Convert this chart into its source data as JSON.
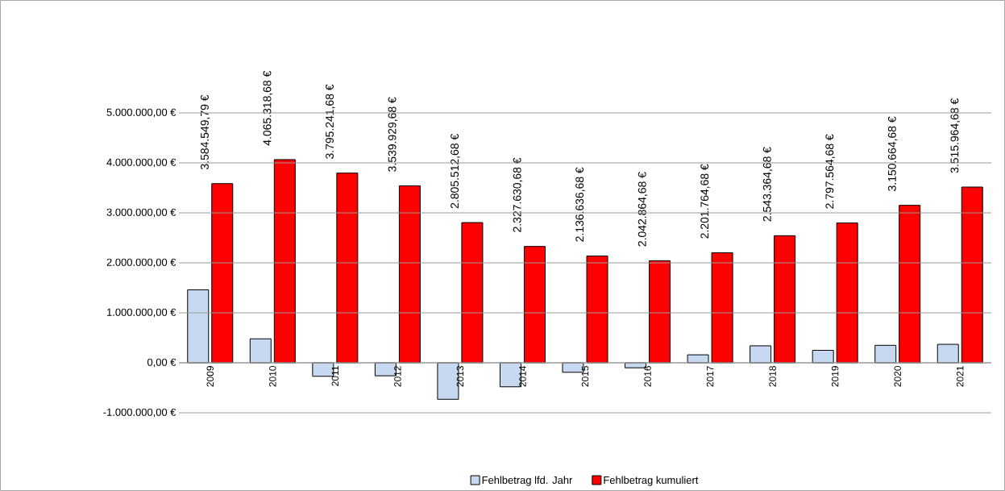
{
  "chart_data": {
    "type": "bar",
    "categories": [
      "2009",
      "2010",
      "2011",
      "2012",
      "2013",
      "2014",
      "2015",
      "2016",
      "2017",
      "2018",
      "2019",
      "2020",
      "2021"
    ],
    "series": [
      {
        "name": "Fehlbetrag lfd. Jahr",
        "color": "#c6d9f1",
        "values": [
          1460000,
          480000,
          -270000,
          -260000,
          -730000,
          -480000,
          -190000,
          -100000,
          160000,
          340000,
          250000,
          350000,
          370000
        ]
      },
      {
        "name": "Fehlbetrag kumuliert",
        "color": "#ff0000",
        "values": [
          3584549.79,
          4065318.68,
          3795241.68,
          3539929.68,
          2805512.68,
          2327630.68,
          2136636.68,
          2042864.68,
          2201764.68,
          2543364.68,
          2797564.68,
          3150664.68,
          3515964.68
        ],
        "value_labels": [
          "3.584.549,79 €",
          "4.065.318,68 €",
          "3.795.241,68 €",
          "3.539.929,68 €",
          "2.805.512,68 €",
          "2.327.630,68 €",
          "2.136.636,68 €",
          "2.042.864,68 €",
          "2.201.764,68 €",
          "2.543.364,68 €",
          "2.797.564,68 €",
          "3.150.664,68 €",
          "3.515.964,68 €"
        ]
      }
    ],
    "ylim": [
      -1000000,
      5000000
    ],
    "yticks": [
      {
        "value": -1000000,
        "label": "-1.000.000,00 €"
      },
      {
        "value": 0,
        "label": "0,00 €"
      },
      {
        "value": 1000000,
        "label": "1.000.000,00 €"
      },
      {
        "value": 2000000,
        "label": "2.000.000,00 €"
      },
      {
        "value": 3000000,
        "label": "3.000.000,00 €"
      },
      {
        "value": 4000000,
        "label": "4.000.000,00 €"
      },
      {
        "value": 5000000,
        "label": "5.000.000,00 €"
      }
    ],
    "grid": "y",
    "legend": "bottom"
  }
}
